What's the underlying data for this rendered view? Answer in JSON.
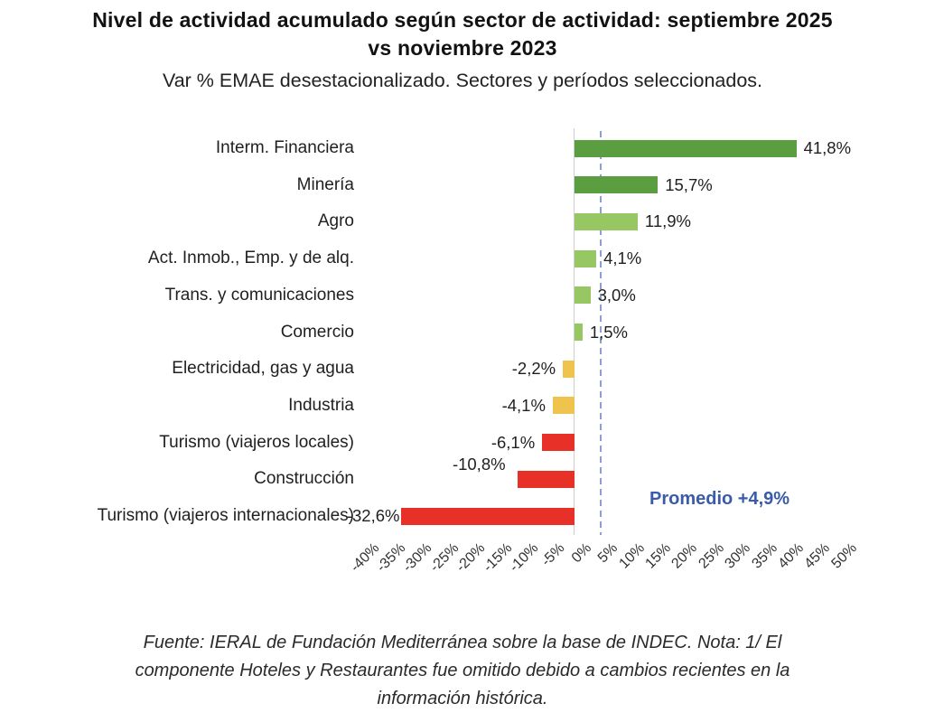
{
  "header": {
    "title_line1": "Nivel de actividad acumulado según sector de actividad: septiembre 2025",
    "title_line2": "vs noviembre 2023",
    "subtitle": "Var % EMAE desestacionalizado. Sectores y períodos seleccionados."
  },
  "chart_data": {
    "type": "bar",
    "orientation": "horizontal",
    "title": "Nivel de actividad acumulado según sector de actividad: septiembre 2025 vs noviembre 2023",
    "subtitle": "Var % EMAE desestacionalizado. Sectores y períodos seleccionados.",
    "unit": "%",
    "xlim": [
      -40,
      50
    ],
    "tick_step": 5,
    "grid": false,
    "legend": "none",
    "bars": [
      {
        "category": "Interm. Financiera",
        "value": 41.8,
        "label": "41,8%",
        "color": "#5b9e42"
      },
      {
        "category": "Minería",
        "value": 15.7,
        "label": "15,7%",
        "color": "#5b9e42"
      },
      {
        "category": "Agro",
        "value": 11.9,
        "label": "11,9%",
        "color": "#97c763"
      },
      {
        "category": "Act. Inmob., Emp. y de alq.",
        "value": 4.1,
        "label": "4,1%",
        "color": "#97c763"
      },
      {
        "category": "Trans. y comunicaciones",
        "value": 3.0,
        "label": "3,0%",
        "color": "#97c763"
      },
      {
        "category": "Comercio",
        "value": 1.5,
        "label": "1,5%",
        "color": "#97c763"
      },
      {
        "category": "Electricidad, gas y agua",
        "value": -2.2,
        "label": "-2,2%",
        "color": "#f0c24e"
      },
      {
        "category": "Industria",
        "value": -4.1,
        "label": "-4,1%",
        "color": "#f0c24e"
      },
      {
        "category": "Turismo (viajeros locales)",
        "value": -6.1,
        "label": "-6,1%",
        "color": "#e73128"
      },
      {
        "category": "Construcción",
        "value": -10.8,
        "label": "-10,8%",
        "color": "#e73128",
        "label_dx": -5,
        "label_dy": -16
      },
      {
        "category": "Turismo (viajeros internacionales)",
        "value": -32.6,
        "label": "-32,6%",
        "color": "#e73128",
        "label_dx": 6
      }
    ],
    "ticks": [
      {
        "v": -40,
        "label": "-40%"
      },
      {
        "v": -35,
        "label": "-35%"
      },
      {
        "v": -30,
        "label": "-30%"
      },
      {
        "v": -25,
        "label": "-25%"
      },
      {
        "v": -20,
        "label": "-20%"
      },
      {
        "v": -15,
        "label": "-15%"
      },
      {
        "v": -10,
        "label": "-10%"
      },
      {
        "v": -5,
        "label": "-5%"
      },
      {
        "v": 0,
        "label": "0%"
      },
      {
        "v": 5,
        "label": "5%"
      },
      {
        "v": 10,
        "label": "10%"
      },
      {
        "v": 15,
        "label": "15%"
      },
      {
        "v": 20,
        "label": "20%"
      },
      {
        "v": 25,
        "label": "25%"
      },
      {
        "v": 30,
        "label": "30%"
      },
      {
        "v": 35,
        "label": "35%"
      },
      {
        "v": 40,
        "label": "40%"
      },
      {
        "v": 45,
        "label": "45%"
      },
      {
        "v": 50,
        "label": "50%"
      }
    ],
    "average": {
      "value": 4.9,
      "label": "Promedio +4,9%",
      "text_color": "#3a5ba9",
      "line_color": "#8aa0d2"
    },
    "axis_line_color": "#cfcfcf",
    "palette": {
      "dark_green": "#5b9e42",
      "light_green": "#97c763",
      "yellow": "#f0c24e",
      "red": "#e73128"
    }
  },
  "footer": {
    "text": "Fuente: IERAL de Fundación Mediterránea sobre la base de INDEC. Nota: 1/ El componente Hoteles y Restaurantes fue omitido debido a cambios recientes en la información histórica."
  }
}
